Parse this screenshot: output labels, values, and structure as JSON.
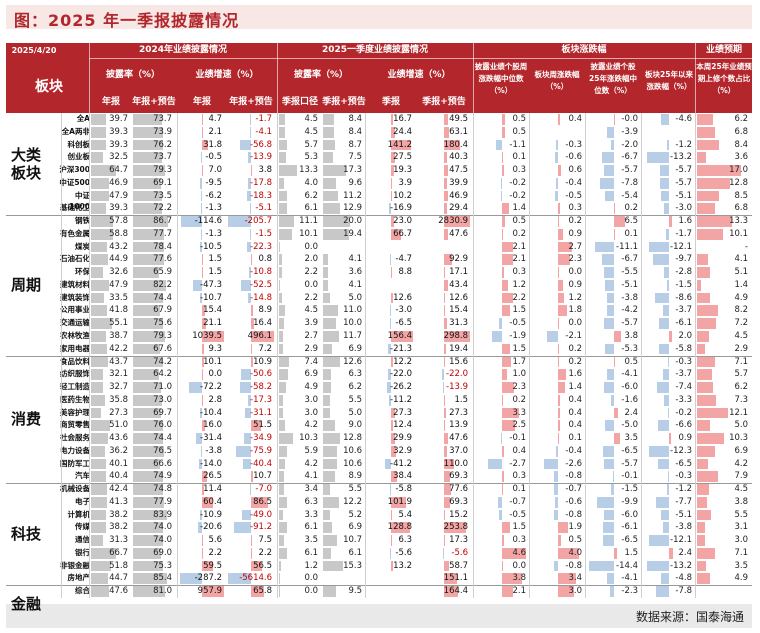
{
  "title": "图：2025 年一季报披露情况",
  "header": {
    "date": "2025/4/20",
    "sector_label": "板块",
    "g2024": "2024年业绩披露情况",
    "g2025": "2025一季度业绩披露情况",
    "gmove": "板块涨跌幅",
    "gfore": "业绩预期",
    "disc_rate": "披露率（%）",
    "growth": "业绩增速（%）",
    "disc_rate2": "披露率（%）",
    "growth2": "业绩增速（%）",
    "annual": "年报",
    "annual_pre": "年报+预告",
    "annual2": "年报",
    "annual_pre2": "年报+预告",
    "q_cal": "季报口径",
    "q_pre": "季报+预告",
    "q": "季报",
    "q_pre2": "季报+预告",
    "m1": "披露业绩个股周涨跌幅中位数（%）",
    "m2": "板块周涨跌幅（%）",
    "m3": "披露业绩个股25年涨跌幅中位数（%）",
    "m4": "板块25年以来涨跌幅（%）",
    "m5": "本周25年业绩预期上修个数占比（%）"
  },
  "groups": [
    {
      "name": "大类板块",
      "start": 0,
      "count": 8
    },
    {
      "name": "周期",
      "start": 8,
      "count": 11
    },
    {
      "name": "消费",
      "start": 19,
      "count": 10
    },
    {
      "name": "科技",
      "start": 29,
      "count": 8
    },
    {
      "name": "金融",
      "start": 37,
      "count": 3
    }
  ],
  "rows": [
    {
      "n": "全A",
      "v": [
        "39.7",
        "73.7",
        "4.7",
        "-1.7",
        "4.5",
        "8.4",
        "16.7",
        "49.5",
        "0.5",
        "0.4",
        "-0.0",
        "-4.6",
        "6.2"
      ]
    },
    {
      "n": "全A两非",
      "v": [
        "39.3",
        "73.9",
        "2.1",
        "-4.1",
        "4.5",
        "8.4",
        "24.4",
        "63.1",
        "0.5",
        "",
        "-3.9",
        "",
        "6.8"
      ]
    },
    {
      "n": "科创板",
      "v": [
        "39.3",
        "76.2",
        "31.8",
        "-56.8",
        "5.7",
        "8.7",
        "141.2",
        "180.4",
        "-1.1",
        "-0.3",
        "-2.0",
        "-1.2",
        "8.4"
      ]
    },
    {
      "n": "创业板",
      "v": [
        "32.5",
        "73.7",
        "-0.5",
        "-13.9",
        "5.3",
        "7.5",
        "27.5",
        "40.3",
        "0.1",
        "-0.6",
        "-6.7",
        "-13.2",
        "3.6"
      ]
    },
    {
      "n": "沪深300",
      "v": [
        "64.7",
        "79.3",
        "7.0",
        "3.8",
        "13.3",
        "17.3",
        "19.3",
        "47.5",
        "0.3",
        "0.6",
        "-5.7",
        "-5.7",
        "17.0"
      ]
    },
    {
      "n": "中证500",
      "v": [
        "46.9",
        "69.1",
        "-9.5",
        "-17.8",
        "4.0",
        "9.6",
        "3.9",
        "39.9",
        "-0.2",
        "-0.4",
        "-7.8",
        "-5.7",
        "12.8"
      ]
    },
    {
      "n": "中证1000",
      "v": [
        "47.9",
        "73.5",
        "-6.2",
        "-18.3",
        "6.2",
        "11.2",
        "10.2",
        "46.9",
        "-0.2",
        "-0.5",
        "-5.4",
        "-5.1",
        "8.5"
      ]
    },
    {
      "n": "基础化工",
      "v": [
        "39.3",
        "72.2",
        "-1.3",
        "-5.1",
        "6.1",
        "12.9",
        "-16.9",
        "29.4",
        "1.4",
        "0.3",
        "0.2",
        "-3.0",
        "6.8"
      ]
    },
    {
      "n": "钢铁",
      "v": [
        "57.8",
        "86.7",
        "-114.6",
        "-205.7",
        "11.1",
        "20.0",
        "23.0",
        "2830.9",
        "0.5",
        "0.2",
        "6.5",
        "1.6",
        "13.3"
      ]
    },
    {
      "n": "有色金属",
      "v": [
        "58.8",
        "77.7",
        "-1.3",
        "-1.5",
        "10.1",
        "19.4",
        "66.7",
        "47.6",
        "0.2",
        "0.9",
        "0.1",
        "-1.7",
        "10.1"
      ]
    },
    {
      "n": "煤炭",
      "v": [
        "43.2",
        "78.4",
        "-10.5",
        "-22.3",
        "0.0",
        "",
        "",
        "",
        "2.1",
        "2.7",
        "-11.1",
        "-12.1",
        "-"
      ]
    },
    {
      "n": "石油石化",
      "v": [
        "44.9",
        "77.6",
        "1.5",
        "0.8",
        "2.0",
        "4.1",
        "-4.7",
        "92.9",
        "2.1",
        "2.3",
        "-6.7",
        "-9.7",
        "4.1"
      ]
    },
    {
      "n": "环保",
      "v": [
        "32.6",
        "65.9",
        "1.5",
        "-10.8",
        "2.2",
        "3.6",
        "8.8",
        "17.1",
        "0.3",
        "0.0",
        "-5.5",
        "-2.8",
        "5.1"
      ]
    },
    {
      "n": "建筑材料",
      "v": [
        "47.9",
        "82.2",
        "-47.3",
        "-52.5",
        "0.0",
        "4.1",
        "",
        "43.4",
        "1.2",
        "0.9",
        "-5.1",
        "-1.5",
        "1.4"
      ]
    },
    {
      "n": "建筑装饰",
      "v": [
        "33.5",
        "74.4",
        "-10.7",
        "-14.8",
        "2.2",
        "5.0",
        "12.6",
        "12.6",
        "2.2",
        "1.2",
        "-3.8",
        "-8.6",
        "4.9"
      ]
    },
    {
      "n": "公用事业",
      "v": [
        "41.8",
        "67.9",
        "15.4",
        "8.9",
        "4.5",
        "11.0",
        "-3.0",
        "15.4",
        "1.5",
        "1.8",
        "-4.2",
        "-3.7",
        "8.2"
      ]
    },
    {
      "n": "交通运输",
      "v": [
        "55.1",
        "75.6",
        "21.1",
        "16.4",
        "3.9",
        "10.0",
        "-6.5",
        "31.3",
        "-0.5",
        "0.0",
        "-5.7",
        "-6.1",
        "7.2"
      ]
    },
    {
      "n": "农林牧渔",
      "v": [
        "38.7",
        "79.3",
        "1039.5",
        "496.1",
        "2.7",
        "11.7",
        "156.4",
        "298.8",
        "-1.9",
        "-2.1",
        "3.8",
        "2.0",
        "4.5"
      ]
    },
    {
      "n": "家用电器",
      "v": [
        "42.2",
        "67.6",
        "9.3",
        "7.2",
        "2.9",
        "6.9",
        "-21.3",
        "19.4",
        "1.5",
        "0.2",
        "-5.3",
        "-5.8",
        "2.9"
      ]
    },
    {
      "n": "食品饮料",
      "v": [
        "43.7",
        "74.2",
        "10.1",
        "10.9",
        "7.4",
        "12.6",
        "12.2",
        "15.6",
        "1.7",
        "0.2",
        "0.5",
        "-0.3",
        "7.1"
      ]
    },
    {
      "n": "纺织服饰",
      "v": [
        "32.1",
        "64.2",
        "0.0",
        "-50.6",
        "6.9",
        "6.3",
        "-22.0",
        "-22.0",
        "1.0",
        "1.6",
        "-4.1",
        "-3.7",
        "5.7"
      ]
    },
    {
      "n": "轻工制造",
      "v": [
        "32.7",
        "71.0",
        "-72.2",
        "-58.2",
        "4.9",
        "6.2",
        "-26.2",
        "-13.9",
        "2.3",
        "1.4",
        "-6.0",
        "-7.4",
        "6.2"
      ]
    },
    {
      "n": "医药生物",
      "v": [
        "35.8",
        "73.0",
        "2.8",
        "-17.3",
        "3.0",
        "5.5",
        "-11.2",
        "1.5",
        "0.2",
        "0.4",
        "-1.6",
        "-3.3",
        "7.3"
      ]
    },
    {
      "n": "美容护理",
      "v": [
        "27.3",
        "69.7",
        "-10.4",
        "-31.1",
        "3.0",
        "5.0",
        "27.3",
        "27.3",
        "3.3",
        "0.4",
        "2.4",
        "-0.2",
        "12.1"
      ]
    },
    {
      "n": "商贸零售",
      "v": [
        "51.0",
        "76.0",
        "16.0",
        "51.5",
        "4.2",
        "9.0",
        "12.4",
        "13.9",
        "2.5",
        "0.4",
        "-5.0",
        "-6.6",
        "5.0"
      ]
    },
    {
      "n": "社会服务",
      "v": [
        "43.6",
        "74.4",
        "-31.4",
        "-34.9",
        "10.3",
        "12.8",
        "29.9",
        "47.6",
        "-0.1",
        "0.1",
        "3.5",
        "0.9",
        "10.3"
      ]
    },
    {
      "n": "电力设备",
      "v": [
        "36.2",
        "76.5",
        "-3.8",
        "-75.9",
        "5.9",
        "10.6",
        "32.9",
        "37.0",
        "0.4",
        "-0.4",
        "-6.5",
        "-12.3",
        "6.9"
      ]
    },
    {
      "n": "国防军工",
      "v": [
        "40.1",
        "66.6",
        "-14.0",
        "-40.4",
        "4.2",
        "10.6",
        "-41.2",
        "110.0",
        "-2.7",
        "-2.6",
        "-5.7",
        "-6.5",
        "4.2"
      ]
    },
    {
      "n": "汽车",
      "v": [
        "40.4",
        "74.9",
        "26.5",
        "10.7",
        "4.1",
        "8.9",
        "38.4",
        "69.3",
        "0.3",
        "-0.8",
        "-0.1",
        "-0.3",
        "7.9"
      ]
    },
    {
      "n": "机械设备",
      "v": [
        "42.4",
        "74.8",
        "11.4",
        "-7.0",
        "3.4",
        "5.5",
        "-5.8",
        "77.6",
        "0.1",
        "-0.7",
        "-1.5",
        "-1.2",
        "4.5"
      ]
    },
    {
      "n": "电子",
      "v": [
        "41.3",
        "77.9",
        "60.4",
        "86.5",
        "6.3",
        "12.2",
        "101.9",
        "69.3",
        "-0.7",
        "-0.6",
        "-9.9",
        "-7.7",
        "3.8"
      ]
    },
    {
      "n": "计算机",
      "v": [
        "38.2",
        "83.9",
        "-10.9",
        "-49.0",
        "3.3",
        "5.2",
        "5.4",
        "15.2",
        "-0.5",
        "-0.8",
        "-6.0",
        "-5.1",
        "5.5"
      ]
    },
    {
      "n": "传媒",
      "v": [
        "38.2",
        "74.0",
        "-20.6",
        "-91.2",
        "6.1",
        "6.9",
        "128.8",
        "253.8",
        "1.5",
        "1.9",
        "-6.1",
        "-3.8",
        "3.1"
      ]
    },
    {
      "n": "通信",
      "v": [
        "31.3",
        "74.0",
        "5.6",
        "7.5",
        "3.5",
        "10.7",
        "6.3",
        "17.3",
        "0.3",
        "0.5",
        "-6.5",
        "-12.1",
        "3.0"
      ]
    },
    {
      "n": "银行",
      "v": [
        "66.7",
        "69.0",
        "2.2",
        "2.2",
        "6.1",
        "6.1",
        "-5.6",
        "-5.6",
        "4.6",
        "4.0",
        "1.5",
        "2.4",
        "7.1"
      ]
    },
    {
      "n": "非银金融",
      "v": [
        "51.8",
        "75.3",
        "59.5",
        "56.5",
        "1.2",
        "15.3",
        "13.2",
        "58.7",
        "0.0",
        "-0.8",
        "-14.4",
        "-13.2",
        "3.5"
      ]
    },
    {
      "n": "房地产",
      "v": [
        "44.7",
        "85.4",
        "-287.2",
        "-5614.6",
        "0.0",
        "",
        "",
        "151.1",
        "3.8",
        "3.4",
        "-4.1",
        "-4.8",
        "4.9"
      ]
    },
    {
      "n": "综合",
      "v": [
        "47.6",
        "81.0",
        "957.9",
        "65.8",
        "0.0",
        "9.5",
        "",
        "164.4",
        "2.1",
        "3.0",
        "-2.3",
        "-7.8",
        ""
      ]
    }
  ],
  "footer": "数据来源：国泰海通"
}
